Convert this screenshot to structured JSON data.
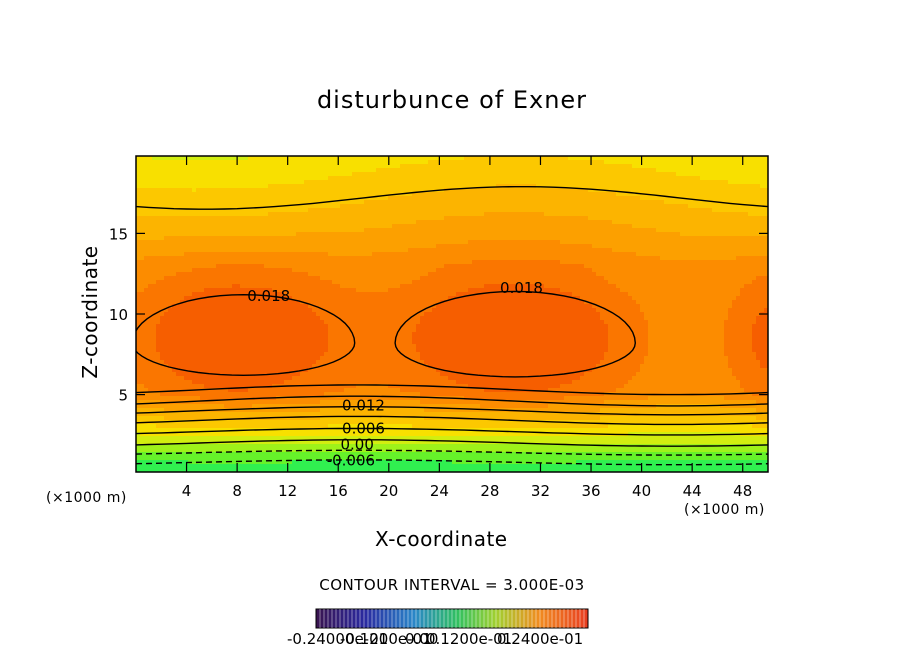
{
  "chart_data": {
    "type": "contour",
    "title": "disturbunce of Exner",
    "xlabel": "X-coordinate",
    "ylabel": "Z-coordinate",
    "x_unit_note_left": "(×1000 m)",
    "x_unit_note_right": "(×1000 m)",
    "xlim": [
      0,
      50
    ],
    "ylim": [
      0.2,
      19.8
    ],
    "x_ticks": [
      4,
      8,
      12,
      16,
      20,
      24,
      28,
      32,
      36,
      40,
      44,
      48
    ],
    "y_ticks": [
      5,
      10,
      15
    ],
    "contour_interval_text": "CONTOUR INTERVAL = 3.000E-03",
    "contour_labels": [
      {
        "text": "0.018",
        "x": 10.5,
        "z": 10.8
      },
      {
        "text": "0.018",
        "x": 30.5,
        "z": 11.3
      },
      {
        "text": "0.012",
        "x": 18.0,
        "z": 4.0
      },
      {
        "text": "0.006",
        "x": 18.0,
        "z": 2.6
      },
      {
        "text": "0.00",
        "x": 17.5,
        "z": 1.6
      },
      {
        "text": "-0.006",
        "x": 17.0,
        "z": 0.6
      }
    ],
    "colorbar_labels": [
      "-0.24000e-01",
      "-0.1200e-01",
      "0.00",
      "0.1200e-01",
      "0.2400e-01"
    ],
    "colorbar_range": [
      -0.024,
      0.024
    ],
    "colors": {
      "level_fill": [
        "#00e5b8",
        "#10ec8c",
        "#30f050",
        "#66f22a",
        "#9ef21a",
        "#d2ee10",
        "#f8e000",
        "#fcc800",
        "#fcb400",
        "#fca000",
        "#fc8c00",
        "#fa7600",
        "#f65e00"
      ],
      "contour_line": "#000000"
    }
  }
}
